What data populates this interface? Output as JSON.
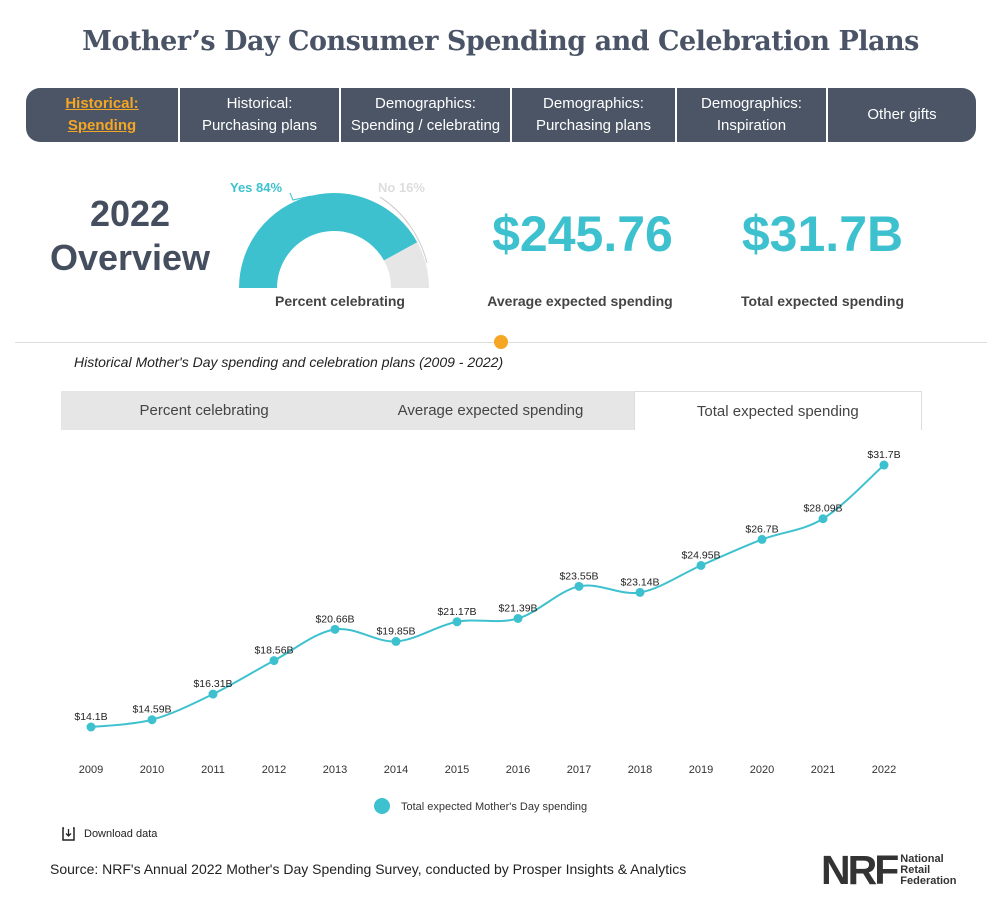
{
  "title": "Mother’s Day Consumer Spending and Celebration Plans",
  "nav": [
    {
      "line1": "Historical:",
      "line2": "Spending",
      "active": true
    },
    {
      "line1": "Historical:",
      "line2": "Purchasing plans"
    },
    {
      "line1": "Demographics:",
      "line2": "Spending / celebrating"
    },
    {
      "line1": "Demographics:",
      "line2": "Purchasing plans"
    },
    {
      "line1": "Demographics:",
      "line2": "Inspiration"
    },
    {
      "line1": "Other gifts",
      "line2": ""
    }
  ],
  "overview": {
    "year": "2022",
    "word": "Overview",
    "gauge": {
      "yes_label": "Yes 84%",
      "no_label": "No 16%",
      "yes_percent": 84,
      "label": "Percent celebrating"
    },
    "avg_value": "$245.76",
    "avg_label": "Average expected spending",
    "total_value": "$31.7B",
    "total_label": "Total expected spending"
  },
  "slider": {
    "position_percent": 50
  },
  "chart_subtitle": "Historical Mother's Day spending and celebration plans (2009 - 2022)",
  "chart_tabs": [
    "Percent celebrating",
    "Average expected spending",
    "Total expected spending"
  ],
  "active_chart_tab": 2,
  "colors": {
    "accent": "#3ec1cf",
    "nav_bg": "#4b5565",
    "active_nav": "#f5a623",
    "no": "#e6e6e6"
  },
  "chart_data": {
    "type": "line",
    "categories": [
      "2009",
      "2010",
      "2011",
      "2012",
      "2013",
      "2014",
      "2015",
      "2016",
      "2017",
      "2018",
      "2019",
      "2020",
      "2021",
      "2022"
    ],
    "series": [
      {
        "name": "Total expected Mother's Day spending",
        "values": [
          14.1,
          14.59,
          16.31,
          18.56,
          20.66,
          19.85,
          21.17,
          21.39,
          23.55,
          23.14,
          24.95,
          26.7,
          28.09,
          31.7
        ]
      }
    ],
    "data_labels": [
      "$14.1B",
      "$14.59B",
      "$16.31B",
      "$18.56B",
      "$20.66B",
      "$19.85B",
      "$21.17B",
      "$21.39B",
      "$23.55B",
      "$23.14B",
      "$24.95B",
      "$26.7B",
      "$28.09B",
      "$31.7B"
    ],
    "legend": "bottom",
    "grid": false
  },
  "download_label": "Download data",
  "source": "Source: NRF's Annual 2022 Mother's Day Spending Survey, conducted by Prosper Insights & Analytics",
  "logo": {
    "mark": "NRF",
    "line1": "National",
    "line2": "Retail",
    "line3": "Federation"
  }
}
